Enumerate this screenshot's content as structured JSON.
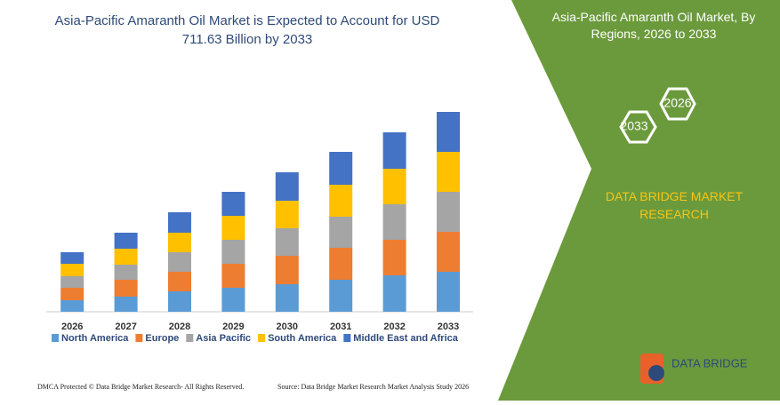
{
  "chart_data": {
    "type": "stacked_bar",
    "title": "Asia-Pacific Amaranth Oil Market is Expected to Account for USD 711.63 Billion by 2033",
    "categories": [
      "2026",
      "2027",
      "2028",
      "2029",
      "2030",
      "2031",
      "2032",
      "2033"
    ],
    "series": [
      {
        "name": "North America",
        "color": "#5b9bd5",
        "values": [
          13,
          17,
          23,
          27,
          31,
          36,
          41,
          45
        ]
      },
      {
        "name": "Europe",
        "color": "#ed7d31",
        "values": [
          14,
          19,
          22,
          27,
          32,
          36,
          40,
          45
        ]
      },
      {
        "name": "Asia Pacific",
        "color": "#a5a5a5",
        "values": [
          13,
          17,
          22,
          27,
          31,
          35,
          40,
          45
        ]
      },
      {
        "name": "South America",
        "color": "#ffc000",
        "values": [
          14,
          18,
          22,
          27,
          31,
          36,
          40,
          45
        ]
      },
      {
        "name": "Middle East and Africa",
        "color": "#4472c4",
        "values": [
          13,
          18,
          23,
          27,
          32,
          37,
          41,
          45
        ]
      }
    ]
  },
  "panel": {
    "title": "Asia-Pacific Amaranth Oil Market, By Regions, 2026 to 2033",
    "hex_start": "2026",
    "hex_end": "2033",
    "brand": "DATA BRIDGE MARKET RESEARCH",
    "logo": "DATA BRIDGE"
  },
  "footer": {
    "left": "DMCA Protected © Data Bridge Market Research-  All Rights Reserved.",
    "right": "Source: Data Bridge Market Research  Market Analysis Study 2026"
  }
}
